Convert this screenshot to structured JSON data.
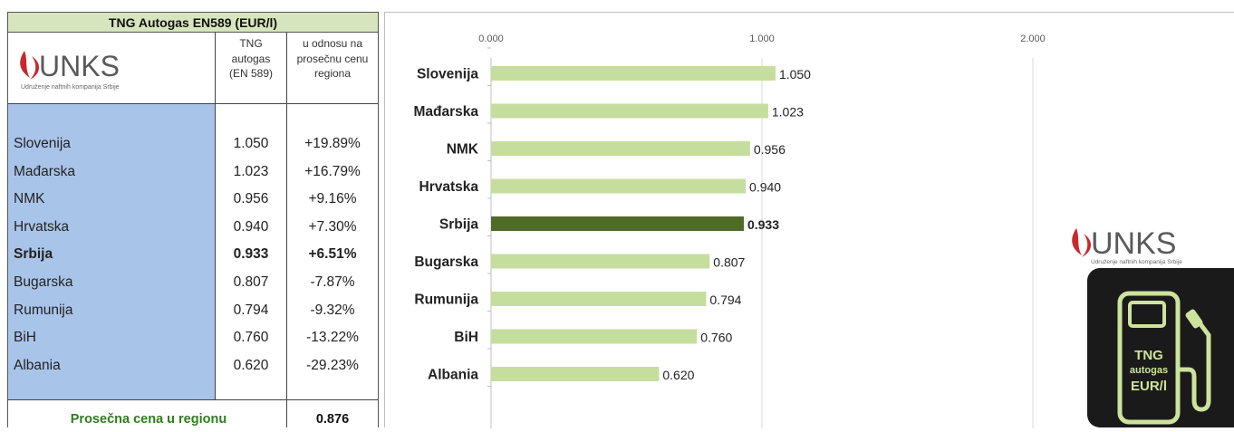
{
  "table": {
    "title": "TNG Autogas EN589 (EUR/l)",
    "logo_text": "UNKS",
    "logo_subtitle": "Udruženje naftnih kompanija Srbije",
    "col_price_header": [
      "TNG",
      "autogas",
      "(EN 589)"
    ],
    "col_diff_header": [
      "u odnosu na",
      "prosečnu cenu",
      "regiona"
    ],
    "rows": [
      {
        "country": "Slovenija",
        "price": "1.050",
        "diff": "+19.89%"
      },
      {
        "country": "Mađarska",
        "price": "1.023",
        "diff": "+16.79%"
      },
      {
        "country": "NMK",
        "price": "0.956",
        "diff": "+9.16%"
      },
      {
        "country": "Hrvatska",
        "price": "0.940",
        "diff": "+7.30%"
      },
      {
        "country": "Srbija",
        "price": "0.933",
        "diff": "+6.51%"
      },
      {
        "country": "Bugarska",
        "price": "0.807",
        "diff": "-7.87%"
      },
      {
        "country": "Rumunija",
        "price": "0.794",
        "diff": "-9.32%"
      },
      {
        "country": "BiH",
        "price": "0.760",
        "diff": "-13.22%"
      },
      {
        "country": "Albania",
        "price": "0.620",
        "diff": "-29.23%"
      }
    ],
    "highlight_country": "Srbija",
    "average_label": "Prosečna cena u regionu",
    "average_value": "0.876"
  },
  "chart_data": {
    "type": "bar",
    "orientation": "horizontal",
    "categories": [
      "Slovenija",
      "Mađarska",
      "NMK",
      "Hrvatska",
      "Srbija",
      "Bugarska",
      "Rumunija",
      "BiH",
      "Albania"
    ],
    "values": [
      1.05,
      1.023,
      0.956,
      0.94,
      0.933,
      0.807,
      0.794,
      0.76,
      0.62
    ],
    "value_labels": [
      "1.050",
      "1.023",
      "0.956",
      "0.940",
      "0.933",
      "0.807",
      "0.794",
      "0.760",
      "0.620"
    ],
    "highlight": "Srbija",
    "xlim": [
      0,
      2
    ],
    "xticks": [
      0,
      1,
      2
    ],
    "xtick_labels": [
      "0.000",
      "1.000",
      "2.000"
    ],
    "gridlines": "vertical",
    "colors": {
      "bar": "#c5de9e",
      "highlight_bar": "#4f6b28",
      "grid": "#d9d9d9"
    }
  },
  "badge": {
    "logo_text": "UNKS",
    "logo_subtitle": "Udruženje naftnih kompanija Srbije",
    "lines": [
      "TNG",
      "autogas",
      "EUR/l"
    ],
    "pump_icon": "fuel-pump-icon"
  }
}
